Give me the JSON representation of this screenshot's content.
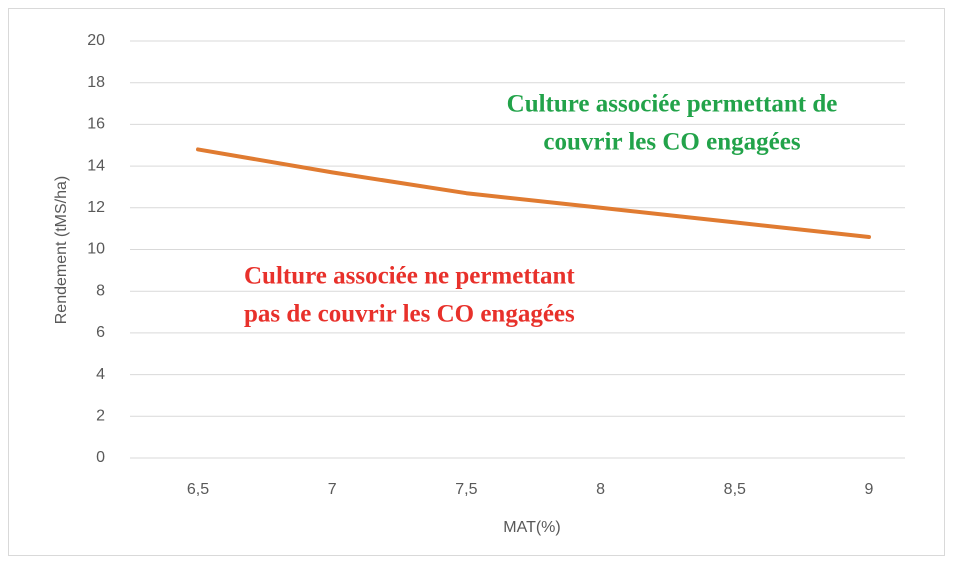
{
  "chart_data": {
    "type": "line",
    "categories": [
      "6,5",
      "7",
      "7,5",
      "8",
      "8,5",
      "9"
    ],
    "series": [
      {
        "name": "Rendement",
        "color": "#e07b31",
        "values": [
          14.8,
          13.7,
          12.7,
          12.0,
          11.3,
          10.6
        ]
      }
    ],
    "ylim": [
      0,
      20
    ],
    "yticks": [
      0,
      2,
      4,
      6,
      8,
      10,
      12,
      14,
      16,
      18,
      20
    ],
    "grid": true,
    "y_label": "Rendement (tMS/ha)",
    "x_label": "MAT(%)",
    "annotations": [
      {
        "lines": [
          "Culture associée permettant de",
          "couvrir les CO engagées"
        ],
        "color": "#22a34a"
      },
      {
        "lines": [
          "Culture associée ne permettant",
          "pas de couvrir les CO engagées"
        ],
        "color": "#e8312b"
      }
    ]
  }
}
